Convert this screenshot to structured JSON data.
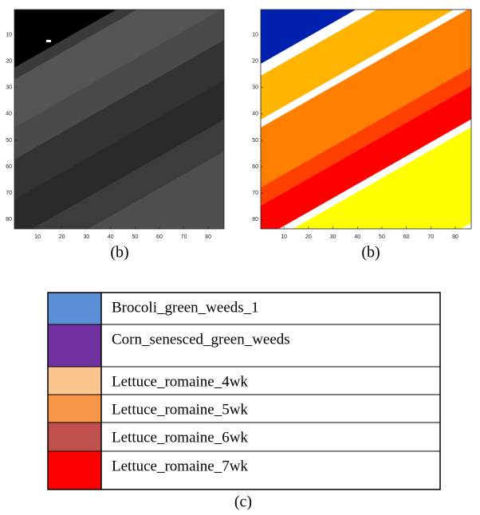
{
  "panels": [
    {
      "caption": "(b)",
      "xlim": [
        0.5,
        86.5
      ],
      "ylim": [
        0.5,
        83.5
      ],
      "xticks": [
        10,
        20,
        30,
        40,
        50,
        60,
        70,
        80
      ],
      "yticks": [
        10,
        20,
        30,
        40,
        50,
        60,
        70,
        80
      ]
    },
    {
      "caption": "(b)",
      "xlim": [
        0.5,
        86.5
      ],
      "ylim": [
        0.5,
        83.5
      ],
      "xticks": [
        10,
        20,
        30,
        40,
        50,
        60,
        70,
        80
      ],
      "yticks": [
        10,
        20,
        30,
        40,
        50,
        60,
        70,
        80
      ]
    }
  ],
  "legend": {
    "rows": [
      {
        "label": "Brocoli_green_weeds_1",
        "color": "#5b8fd6"
      },
      {
        "label": "Corn_senesced_green_weeds",
        "color": "#7030a0"
      },
      {
        "label": "Lettuce_romaine_4wk",
        "color": "#fbc590"
      },
      {
        "label": "Lettuce_romaine_5wk",
        "color": "#f79646"
      },
      {
        "label": "Lettuce_romaine_6wk",
        "color": "#c0504d"
      },
      {
        "label": "Lettuce_romaine_7wk",
        "color": "#ff0000"
      }
    ]
  },
  "caption": "(c)"
}
